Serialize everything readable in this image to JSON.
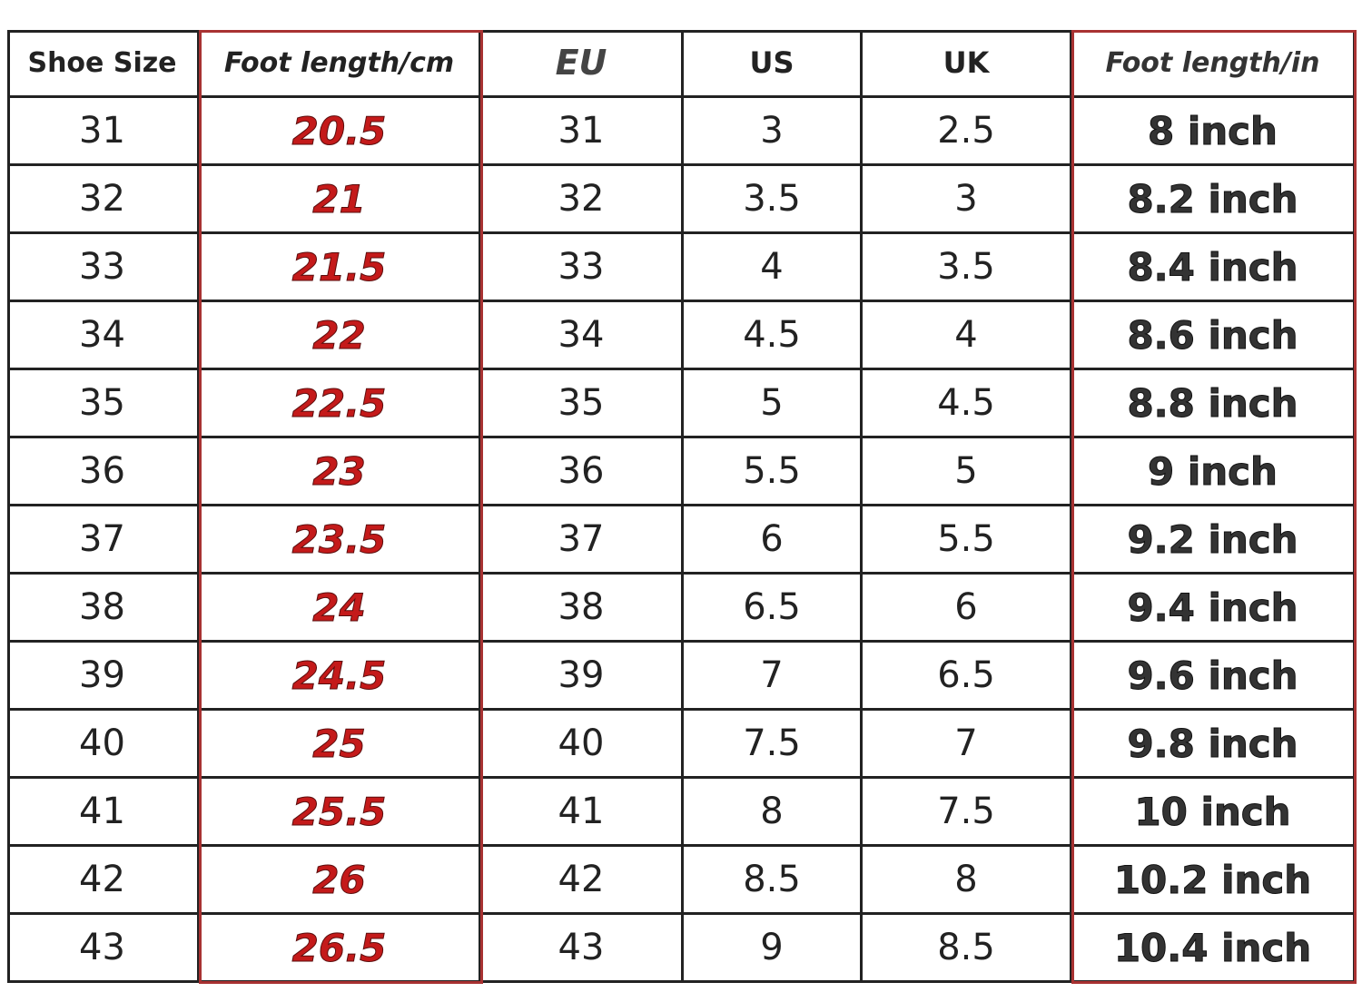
{
  "table": {
    "headers": [
      "Shoe Size",
      "Foot length/cm",
      "EU",
      "US",
      "UK",
      "Foot length/in"
    ],
    "rows": [
      [
        "31",
        "20.5",
        "31",
        "3",
        "2.5",
        "8 inch"
      ],
      [
        "32",
        "21",
        "32",
        "3.5",
        "3",
        "8.2 inch"
      ],
      [
        "33",
        "21.5",
        "33",
        "4",
        "3.5",
        "8.4 inch"
      ],
      [
        "34",
        "22",
        "34",
        "4.5",
        "4",
        "8.6 inch"
      ],
      [
        "35",
        "22.5",
        "35",
        "5",
        "4.5",
        "8.8 inch"
      ],
      [
        "36",
        "23",
        "36",
        "5.5",
        "5",
        "9 inch"
      ],
      [
        "37",
        "23.5",
        "37",
        "6",
        "5.5",
        "9.2 inch"
      ],
      [
        "38",
        "24",
        "38",
        "6.5",
        "6",
        "9.4 inch"
      ],
      [
        "39",
        "24.5",
        "39",
        "7",
        "6.5",
        "9.6 inch"
      ],
      [
        "40",
        "25",
        "40",
        "7.5",
        "7",
        "9.8 inch"
      ],
      [
        "41",
        "25.5",
        "41",
        "8",
        "7.5",
        "10 inch"
      ],
      [
        "42",
        "26",
        "42",
        "8.5",
        "8",
        "10.2 inch"
      ],
      [
        "43",
        "26.5",
        "43",
        "9",
        "8.5",
        "10.4 inch"
      ]
    ]
  }
}
